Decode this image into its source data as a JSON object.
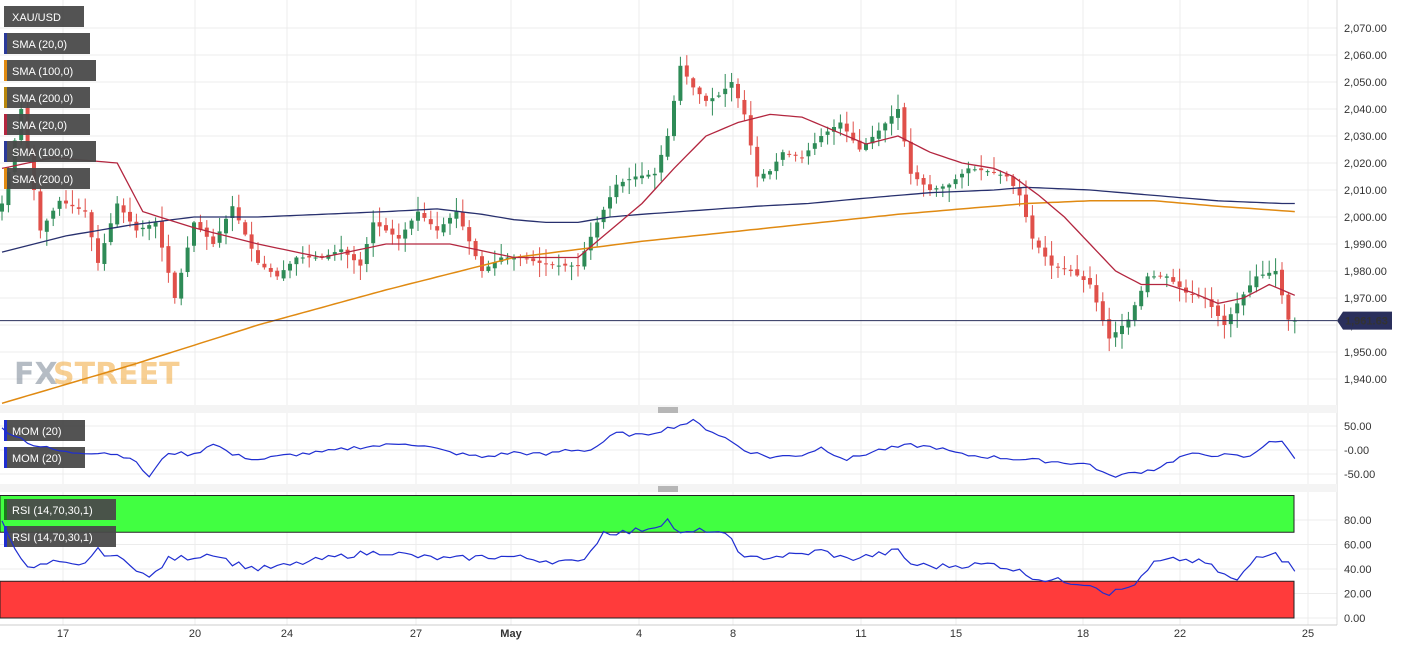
{
  "symbol": "XAU/USD",
  "legend_main": [
    "SMA (20,0)",
    "SMA (100,0)",
    "SMA (200,0)",
    "SMA (20,0)",
    "SMA (100,0)",
    "SMA (200,0)"
  ],
  "legend_main_colors": [
    "#2b3a99",
    "#e08a12",
    "#b8860b",
    "#b3263f",
    "#2b3a99",
    "#e08a12"
  ],
  "legend_mom": [
    "MOM (20)",
    "MOM (20)"
  ],
  "legend_rsi": [
    "RSI (14,70,30,1)",
    "RSI (14,70,30,1)"
  ],
  "watermark": {
    "fx": "FX",
    "street": "STREET"
  },
  "current_price": "1,961.63",
  "colors": {
    "up": "#2e8b57",
    "down": "#e0504a",
    "sma20": "#b3263f",
    "sma100": "#28306e",
    "sma200": "#e08a12",
    "mom": "#1f2ed1",
    "rsi": "#1f2ed1",
    "overbought": "#41ff41",
    "oversold": "#ff3b3b"
  },
  "x_ticks": [
    "17",
    "20",
    "24",
    "27",
    "May",
    "4",
    "8",
    "11",
    "15",
    "18",
    "22",
    "25"
  ],
  "chart_data": [
    {
      "type": "candlestick",
      "title": "XAU/USD",
      "ylim": [
        1930,
        2079
      ],
      "y_ticks": [
        "2,070.00",
        "2,060.00",
        "2,050.00",
        "2,040.00",
        "2,030.00",
        "2,020.00",
        "2,010.00",
        "2,000.00",
        "1,990.00",
        "1,980.00",
        "1,970.00",
        "1,960.00",
        "1,950.00",
        "1,940.00"
      ],
      "close_anchors": [
        [
          0,
          2005
        ],
        [
          3,
          2040
        ],
        [
          6,
          1995
        ],
        [
          9,
          2006
        ],
        [
          13,
          2002
        ],
        [
          15,
          1983
        ],
        [
          18,
          2005
        ],
        [
          21,
          1995
        ],
        [
          24,
          1998
        ],
        [
          27,
          1970
        ],
        [
          30,
          1998
        ],
        [
          33,
          1990
        ],
        [
          36,
          2004
        ],
        [
          40,
          1983
        ],
        [
          43,
          1978
        ],
        [
          46,
          1985
        ],
        [
          50,
          1985
        ],
        [
          53,
          1988
        ],
        [
          56,
          1982
        ],
        [
          58,
          1998
        ],
        [
          62,
          1992
        ],
        [
          65,
          2002
        ],
        [
          68,
          1995
        ],
        [
          71,
          2002
        ],
        [
          75,
          1980
        ],
        [
          78,
          1985
        ],
        [
          81,
          1985
        ],
        [
          84,
          1983
        ],
        [
          87,
          1982
        ],
        [
          90,
          1982
        ],
        [
          93,
          1998
        ],
        [
          96,
          2012
        ],
        [
          99,
          2015
        ],
        [
          102,
          2016
        ],
        [
          104,
          2030
        ],
        [
          106,
          2056
        ],
        [
          108,
          2048
        ],
        [
          110,
          2043
        ],
        [
          112,
          2045
        ],
        [
          114,
          2050
        ],
        [
          116,
          2038
        ],
        [
          118,
          2015
        ],
        [
          120,
          2017
        ],
        [
          122,
          2024
        ],
        [
          125,
          2022
        ],
        [
          128,
          2030
        ],
        [
          131,
          2035
        ],
        [
          134,
          2025
        ],
        [
          137,
          2032
        ],
        [
          140,
          2040
        ],
        [
          142,
          2016
        ],
        [
          145,
          2010
        ],
        [
          148,
          2012
        ],
        [
          151,
          2018
        ],
        [
          154,
          2017
        ],
        [
          157,
          2015
        ],
        [
          159,
          2008
        ],
        [
          161,
          1992
        ],
        [
          164,
          1982
        ],
        [
          167,
          1980
        ],
        [
          170,
          1975
        ],
        [
          173,
          1955
        ],
        [
          176,
          1962
        ],
        [
          179,
          1978
        ],
        [
          182,
          1978
        ],
        [
          185,
          1972
        ],
        [
          188,
          1970
        ],
        [
          191,
          1960
        ],
        [
          193,
          1968
        ],
        [
          196,
          1978
        ],
        [
          199,
          1980
        ],
        [
          201,
          1962
        ],
        [
          202,
          1961.63
        ]
      ],
      "sma20_anchors": [
        [
          0,
          2018
        ],
        [
          8,
          2022
        ],
        [
          18,
          2020
        ],
        [
          22,
          2002
        ],
        [
          30,
          1996
        ],
        [
          40,
          1990
        ],
        [
          50,
          1985
        ],
        [
          60,
          1990
        ],
        [
          70,
          1990
        ],
        [
          80,
          1985
        ],
        [
          90,
          1985
        ],
        [
          95,
          1995
        ],
        [
          100,
          2005
        ],
        [
          105,
          2018
        ],
        [
          110,
          2030
        ],
        [
          115,
          2035
        ],
        [
          120,
          2038
        ],
        [
          125,
          2037
        ],
        [
          130,
          2032
        ],
        [
          135,
          2027
        ],
        [
          140,
          2030
        ],
        [
          145,
          2024
        ],
        [
          150,
          2020
        ],
        [
          155,
          2018
        ],
        [
          158,
          2015
        ],
        [
          162,
          2008
        ],
        [
          166,
          2000
        ],
        [
          170,
          1990
        ],
        [
          174,
          1980
        ],
        [
          178,
          1975
        ],
        [
          182,
          1975
        ],
        [
          186,
          1972
        ],
        [
          190,
          1968
        ],
        [
          194,
          1970
        ],
        [
          198,
          1975
        ],
        [
          202,
          1971
        ]
      ],
      "sma100_anchors": [
        [
          0,
          1987
        ],
        [
          10,
          1993
        ],
        [
          20,
          1997
        ],
        [
          30,
          2000
        ],
        [
          40,
          2000
        ],
        [
          50,
          2001
        ],
        [
          60,
          2002
        ],
        [
          68,
          2003
        ],
        [
          75,
          2001
        ],
        [
          80,
          1999
        ],
        [
          85,
          1998
        ],
        [
          90,
          1998
        ],
        [
          95,
          2000
        ],
        [
          100,
          2001
        ],
        [
          106,
          2002
        ],
        [
          112,
          2003
        ],
        [
          118,
          2004
        ],
        [
          126,
          2005
        ],
        [
          135,
          2007
        ],
        [
          145,
          2009
        ],
        [
          155,
          2010
        ],
        [
          160,
          2011
        ],
        [
          170,
          2010
        ],
        [
          180,
          2008
        ],
        [
          190,
          2006
        ],
        [
          200,
          2005
        ],
        [
          202,
          2005
        ]
      ],
      "sma200_anchors": [
        [
          0,
          1931
        ],
        [
          20,
          1945
        ],
        [
          40,
          1960
        ],
        [
          60,
          1973
        ],
        [
          80,
          1985
        ],
        [
          100,
          1991
        ],
        [
          120,
          1996
        ],
        [
          140,
          2001
        ],
        [
          150,
          2003
        ],
        [
          160,
          2005
        ],
        [
          170,
          2006
        ],
        [
          180,
          2006
        ],
        [
          190,
          2004
        ],
        [
          202,
          2002
        ]
      ]
    },
    {
      "type": "line",
      "name": "MOM (20)",
      "ylim": [
        -60,
        70
      ],
      "y_ticks": [
        "50.00",
        "-0.00",
        "-50.00"
      ],
      "anchors": [
        [
          0,
          45
        ],
        [
          5,
          10
        ],
        [
          10,
          -5
        ],
        [
          16,
          -5
        ],
        [
          20,
          -15
        ],
        [
          23,
          -55
        ],
        [
          26,
          -5
        ],
        [
          30,
          -10
        ],
        [
          33,
          15
        ],
        [
          36,
          -10
        ],
        [
          40,
          -20
        ],
        [
          45,
          -10
        ],
        [
          50,
          -5
        ],
        [
          55,
          5
        ],
        [
          60,
          10
        ],
        [
          63,
          15
        ],
        [
          67,
          5
        ],
        [
          70,
          -5
        ],
        [
          75,
          -15
        ],
        [
          80,
          -5
        ],
        [
          85,
          -10
        ],
        [
          88,
          0
        ],
        [
          92,
          0
        ],
        [
          96,
          35
        ],
        [
          100,
          30
        ],
        [
          104,
          45
        ],
        [
          108,
          60
        ],
        [
          110,
          45
        ],
        [
          113,
          25
        ],
        [
          116,
          0
        ],
        [
          120,
          -15
        ],
        [
          125,
          -10
        ],
        [
          128,
          5
        ],
        [
          132,
          -20
        ],
        [
          137,
          0
        ],
        [
          142,
          10
        ],
        [
          146,
          5
        ],
        [
          150,
          -10
        ],
        [
          155,
          -15
        ],
        [
          160,
          -20
        ],
        [
          165,
          -25
        ],
        [
          170,
          -30
        ],
        [
          173,
          -55
        ],
        [
          176,
          -50
        ],
        [
          180,
          -40
        ],
        [
          185,
          -10
        ],
        [
          190,
          -10
        ],
        [
          195,
          -15
        ],
        [
          198,
          20
        ],
        [
          200,
          15
        ],
        [
          202,
          -15
        ]
      ]
    },
    {
      "type": "line",
      "name": "RSI (14,70,30,1)",
      "ylim": [
        0,
        93
      ],
      "y_ticks": [
        "80.00",
        "60.00",
        "40.00",
        "20.00",
        "0.00"
      ],
      "overbought": 70,
      "oversold": 30,
      "anchors": [
        [
          0,
          78
        ],
        [
          4,
          40
        ],
        [
          8,
          45
        ],
        [
          12,
          42
        ],
        [
          15,
          55
        ],
        [
          20,
          45
        ],
        [
          23,
          32
        ],
        [
          26,
          48
        ],
        [
          30,
          50
        ],
        [
          33,
          53
        ],
        [
          36,
          45
        ],
        [
          40,
          40
        ],
        [
          45,
          43
        ],
        [
          50,
          48
        ],
        [
          55,
          52
        ],
        [
          60,
          54
        ],
        [
          65,
          50
        ],
        [
          70,
          48
        ],
        [
          75,
          50
        ],
        [
          80,
          50
        ],
        [
          85,
          47
        ],
        [
          90,
          45
        ],
        [
          92,
          55
        ],
        [
          94,
          70
        ],
        [
          98,
          70
        ],
        [
          102,
          75
        ],
        [
          104,
          80
        ],
        [
          106,
          68
        ],
        [
          110,
          72
        ],
        [
          114,
          65
        ],
        [
          116,
          48
        ],
        [
          120,
          50
        ],
        [
          125,
          52
        ],
        [
          128,
          55
        ],
        [
          132,
          48
        ],
        [
          137,
          52
        ],
        [
          140,
          55
        ],
        [
          142,
          44
        ],
        [
          146,
          42
        ],
        [
          150,
          43
        ],
        [
          155,
          44
        ],
        [
          158,
          40
        ],
        [
          162,
          32
        ],
        [
          166,
          30
        ],
        [
          170,
          28
        ],
        [
          173,
          20
        ],
        [
          176,
          25
        ],
        [
          178,
          32
        ],
        [
          180,
          45
        ],
        [
          184,
          48
        ],
        [
          188,
          45
        ],
        [
          191,
          35
        ],
        [
          193,
          30
        ],
        [
          196,
          50
        ],
        [
          199,
          55
        ],
        [
          200,
          48
        ],
        [
          202,
          40
        ]
      ]
    }
  ]
}
